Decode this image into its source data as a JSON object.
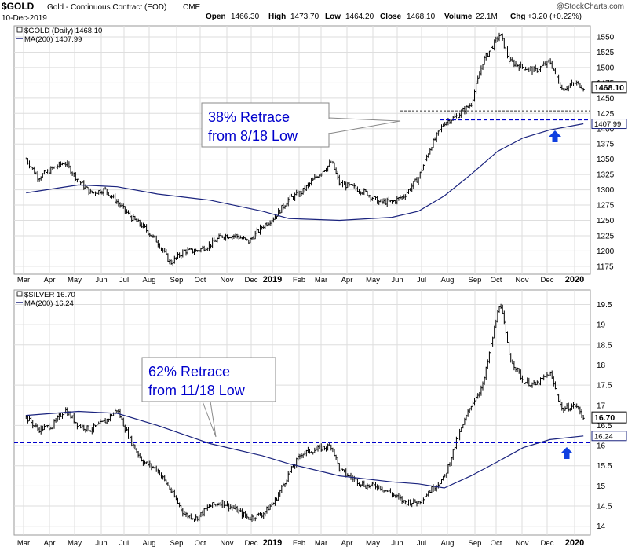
{
  "header": {
    "symbol": "$GOLD",
    "description": "Gold - Continuous Contract (EOD)",
    "exchange": "CME",
    "date": "10-Dec-2019",
    "open_label": "Open",
    "open": "1466.30",
    "high_label": "High",
    "high": "1473.70",
    "low_label": "Low",
    "low": "1464.20",
    "close_label": "Close",
    "close": "1468.10",
    "volume_label": "Volume",
    "volume": "22.1M",
    "chg_label": "Chg",
    "chg": "+3.20 (+0.22%)",
    "watermark": "@StockCharts.com"
  },
  "colors": {
    "price_bars": "#000000",
    "moving_average": "#1a237e",
    "retrace_line": "#0000cc",
    "arrow": "#1040e0",
    "grid": "#dedede",
    "annotation_text": "#0000cc"
  },
  "chart_data": [
    {
      "type": "ohlc",
      "legend": [
        "$GOLD (Daily) 1468.10",
        "MA(200) 1407.99"
      ],
      "series": [
        {
          "name": "$GOLD (Daily)",
          "x": [
            "2018-03-01",
            "2018-03-15",
            "2018-04-01",
            "2018-04-15",
            "2018-05-01",
            "2018-05-15",
            "2018-06-01",
            "2018-06-15",
            "2018-07-01",
            "2018-07-15",
            "2018-08-01",
            "2018-08-16",
            "2018-09-01",
            "2018-09-15",
            "2018-10-01",
            "2018-10-15",
            "2018-11-01",
            "2018-11-15",
            "2018-12-01",
            "2018-12-15",
            "2019-01-01",
            "2019-01-15",
            "2019-02-01",
            "2019-02-20",
            "2019-03-01",
            "2019-03-15",
            "2019-04-01",
            "2019-04-15",
            "2019-05-01",
            "2019-05-15",
            "2019-06-01",
            "2019-06-15",
            "2019-07-01",
            "2019-07-15",
            "2019-08-01",
            "2019-08-15",
            "2019-09-04",
            "2019-09-15",
            "2019-10-01",
            "2019-10-15",
            "2019-11-01",
            "2019-11-15",
            "2019-12-01",
            "2019-12-10"
          ],
          "values": [
            1350,
            1320,
            1335,
            1345,
            1315,
            1295,
            1300,
            1280,
            1255,
            1240,
            1215,
            1180,
            1200,
            1200,
            1210,
            1225,
            1225,
            1215,
            1240,
            1255,
            1285,
            1295,
            1320,
            1345,
            1310,
            1305,
            1295,
            1280,
            1280,
            1290,
            1320,
            1370,
            1410,
            1420,
            1440,
            1510,
            1555,
            1510,
            1500,
            1495,
            1510,
            1465,
            1475,
            1468
          ]
        },
        {
          "name": "MA(200)",
          "x": [
            "2018-03-01",
            "2018-05-01",
            "2018-06-15",
            "2018-08-01",
            "2018-10-01",
            "2018-12-01",
            "2019-01-01",
            "2019-03-01",
            "2019-05-01",
            "2019-06-01",
            "2019-07-01",
            "2019-08-01",
            "2019-09-01",
            "2019-10-01",
            "2019-11-01",
            "2019-12-10"
          ],
          "values": [
            1295,
            1308,
            1305,
            1293,
            1283,
            1265,
            1253,
            1250,
            1255,
            1265,
            1290,
            1325,
            1363,
            1385,
            1398,
            1407.99
          ]
        }
      ],
      "annotation": {
        "label_line1": "38% Retrace",
        "label_line2": "from 8/18 Low",
        "level": 1415
      },
      "last_value_label": "1468.10",
      "ma_value_label": "1407.99",
      "xlabels": [
        "Mar",
        "Apr",
        "May",
        "Jun",
        "Jul",
        "Aug",
        "Sep",
        "Oct",
        "Nov",
        "Dec",
        "2019",
        "Feb",
        "Mar",
        "Apr",
        "May",
        "Jun",
        "Jul",
        "Aug",
        "Sep",
        "Oct",
        "Nov",
        "Dec",
        "2020"
      ],
      "yticks": [
        1175,
        1200,
        1225,
        1250,
        1275,
        1300,
        1325,
        1350,
        1375,
        1400,
        1425,
        1450,
        1475,
        1500,
        1525,
        1550
      ],
      "ylim": [
        1162,
        1568
      ],
      "grid": true,
      "y_axis_side": "right"
    },
    {
      "type": "ohlc",
      "legend": [
        "$SILVER 16.70",
        "MA(200) 16.24"
      ],
      "series": [
        {
          "name": "$SILVER",
          "x": [
            "2018-03-01",
            "2018-03-15",
            "2018-04-01",
            "2018-04-15",
            "2018-05-01",
            "2018-05-15",
            "2018-06-01",
            "2018-06-15",
            "2018-07-01",
            "2018-07-15",
            "2018-08-01",
            "2018-08-16",
            "2018-09-01",
            "2018-09-15",
            "2018-10-01",
            "2018-10-15",
            "2018-11-01",
            "2018-11-15",
            "2018-12-01",
            "2018-12-15",
            "2019-01-01",
            "2019-01-15",
            "2019-02-01",
            "2019-02-20",
            "2019-03-01",
            "2019-03-15",
            "2019-04-01",
            "2019-04-15",
            "2019-05-01",
            "2019-05-15",
            "2019-06-01",
            "2019-06-15",
            "2019-07-01",
            "2019-07-15",
            "2019-08-01",
            "2019-08-15",
            "2019-09-04",
            "2019-09-15",
            "2019-10-01",
            "2019-10-15",
            "2019-11-01",
            "2019-11-15",
            "2019-12-01",
            "2019-12-10"
          ],
          "values": [
            16.7,
            16.4,
            16.5,
            16.9,
            16.5,
            16.4,
            16.6,
            16.9,
            16.1,
            15.6,
            15.4,
            14.9,
            14.3,
            14.2,
            14.5,
            14.6,
            14.4,
            14.2,
            14.3,
            14.6,
            15.3,
            15.8,
            15.9,
            16.0,
            15.4,
            15.2,
            15.0,
            15.0,
            14.8,
            14.6,
            14.6,
            14.9,
            15.2,
            16.1,
            17.0,
            17.5,
            19.6,
            18.2,
            17.6,
            17.5,
            17.8,
            16.9,
            17.0,
            16.7
          ]
        },
        {
          "name": "MA(200)",
          "x": [
            "2018-03-01",
            "2018-05-01",
            "2018-06-15",
            "2018-08-01",
            "2018-10-01",
            "2018-12-01",
            "2019-01-01",
            "2019-03-01",
            "2019-05-01",
            "2019-06-01",
            "2019-07-01",
            "2019-08-01",
            "2019-09-01",
            "2019-10-01",
            "2019-11-01",
            "2019-12-10"
          ],
          "values": [
            16.75,
            16.85,
            16.8,
            16.5,
            16.05,
            15.75,
            15.55,
            15.25,
            15.1,
            15.05,
            14.95,
            15.25,
            15.6,
            15.95,
            16.15,
            16.24
          ]
        }
      ],
      "annotation": {
        "label_line1": "62% Retrace",
        "label_line2": "from 11/18 Low",
        "level": 16.08
      },
      "last_value_label": "16.70",
      "ma_value_label": "16.24",
      "xlabels": [
        "Mar",
        "Apr",
        "May",
        "Jun",
        "Jul",
        "Aug",
        "Sep",
        "Oct",
        "Nov",
        "Dec",
        "2019",
        "Feb",
        "Mar",
        "Apr",
        "May",
        "Jun",
        "Jul",
        "Aug",
        "Sep",
        "Oct",
        "Nov",
        "Dec",
        "2020"
      ],
      "yticks": [
        14.0,
        14.5,
        15.0,
        15.5,
        16.0,
        16.5,
        17.0,
        17.5,
        18.0,
        18.5,
        19.0,
        19.5
      ],
      "ylim": [
        13.78,
        19.86
      ],
      "grid": true,
      "y_axis_side": "right"
    }
  ]
}
